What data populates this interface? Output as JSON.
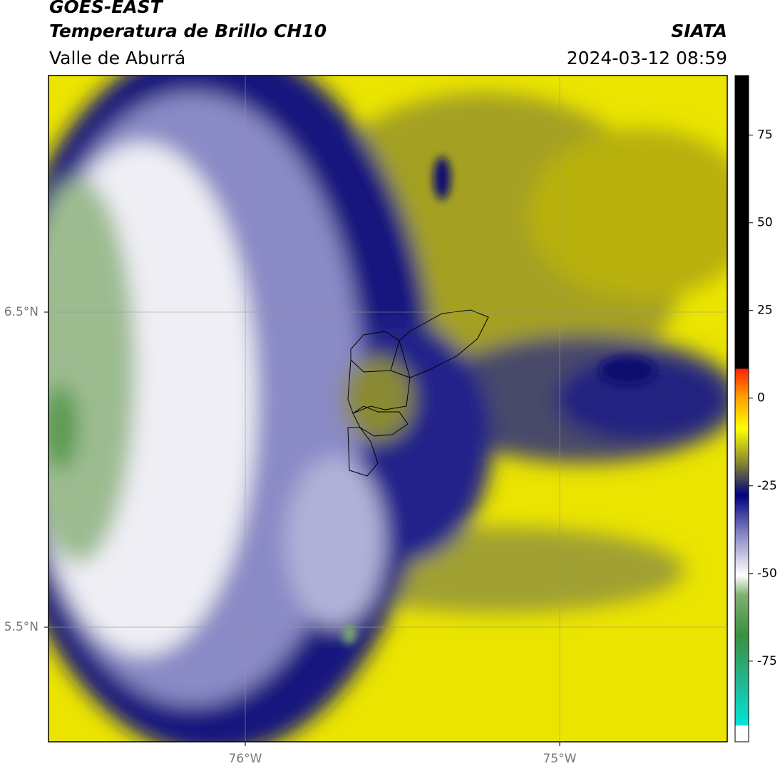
{
  "header": {
    "title": "GOES-EAST",
    "subtitle": "Temperatura de Brillo CH10",
    "region": "Valle de Aburrá",
    "agency": "SIATA",
    "timestamp": "2024-03-12 08:59"
  },
  "map": {
    "xlim": [
      -76.626,
      -74.467
    ],
    "ylim": [
      5.136,
      7.251
    ],
    "xticks": [
      {
        "value": -76,
        "label": "76°W"
      },
      {
        "value": -75,
        "label": "75°W"
      }
    ],
    "yticks": [
      {
        "value": 6.5,
        "label": "6.5°N"
      },
      {
        "value": 5.5,
        "label": "5.5°N"
      }
    ],
    "grid": true
  },
  "colorbar": {
    "lim": [
      -98,
      92
    ],
    "ticks": [
      75,
      50,
      25,
      0,
      -25,
      -50,
      -75
    ]
  }
}
